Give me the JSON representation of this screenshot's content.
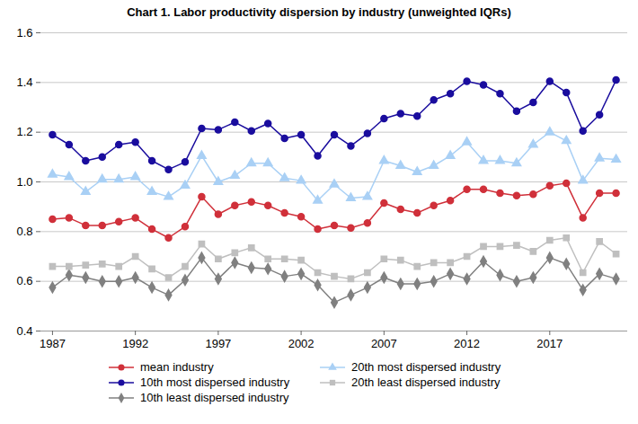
{
  "chart_data": {
    "type": "line",
    "title": "Chart 1. Labor productivity dispersion by industry (unweighted IQRs)",
    "x": [
      1987,
      1988,
      1989,
      1990,
      1991,
      1992,
      1993,
      1994,
      1995,
      1996,
      1997,
      1998,
      1999,
      2000,
      2001,
      2002,
      2003,
      2004,
      2005,
      2006,
      2007,
      2008,
      2009,
      2010,
      2011,
      2012,
      2013,
      2014,
      2015,
      2016,
      2017,
      2018,
      2019,
      2020,
      2021
    ],
    "xlim": [
      1986.3,
      2021.7
    ],
    "xticks": [
      1987,
      1992,
      1997,
      2002,
      2007,
      2012,
      2017
    ],
    "ylim": [
      0.4,
      1.6
    ],
    "yticks": [
      0.4,
      0.6,
      0.8,
      {
        "value": 1,
        "label": "1.0"
      },
      1.2,
      1.4,
      1.6
    ],
    "grid": true,
    "legend": "bottom",
    "series": [
      {
        "name": "mean industry",
        "color": "#d0303a",
        "marker": "circle",
        "values": [
          0.85,
          0.855,
          0.825,
          0.825,
          0.84,
          0.855,
          0.81,
          0.775,
          0.82,
          0.94,
          0.87,
          0.905,
          0.92,
          0.905,
          0.875,
          0.86,
          0.81,
          0.825,
          0.815,
          0.835,
          0.915,
          0.89,
          0.875,
          0.905,
          0.925,
          0.97,
          0.97,
          0.955,
          0.945,
          0.95,
          0.985,
          0.995,
          0.855,
          0.955,
          0.955
        ]
      },
      {
        "name": "10th most dispersed industry",
        "color": "#1a0d9e",
        "marker": "circle",
        "values": [
          1.19,
          1.15,
          1.085,
          1.1,
          1.15,
          1.16,
          1.085,
          1.05,
          1.08,
          1.215,
          1.21,
          1.24,
          1.205,
          1.235,
          1.175,
          1.19,
          1.105,
          1.19,
          1.145,
          1.195,
          1.255,
          1.275,
          1.265,
          1.33,
          1.355,
          1.405,
          1.39,
          1.355,
          1.285,
          1.32,
          1.405,
          1.36,
          1.205,
          1.27,
          1.41
        ]
      },
      {
        "name": "10th least dispersed industry",
        "color": "#808080",
        "marker": "diamond",
        "values": [
          0.575,
          0.625,
          0.615,
          0.6,
          0.6,
          0.615,
          0.575,
          0.545,
          0.605,
          0.695,
          0.61,
          0.675,
          0.655,
          0.65,
          0.62,
          0.63,
          0.585,
          0.515,
          0.545,
          0.575,
          0.615,
          0.59,
          0.59,
          0.6,
          0.63,
          0.61,
          0.68,
          0.625,
          0.6,
          0.615,
          0.695,
          0.67,
          0.565,
          0.63,
          0.61
        ]
      },
      {
        "name": "20th most dispersed industry",
        "color": "#a9d0f5",
        "marker": "triangle",
        "values": [
          1.03,
          1.02,
          0.96,
          1.01,
          1.01,
          1.02,
          0.96,
          0.94,
          0.985,
          1.105,
          1.0,
          1.025,
          1.075,
          1.075,
          1.015,
          1.005,
          0.925,
          0.99,
          0.935,
          0.94,
          1.085,
          1.065,
          1.04,
          1.065,
          1.105,
          1.16,
          1.085,
          1.085,
          1.075,
          1.15,
          1.2,
          1.165,
          1.005,
          1.095,
          1.09
        ]
      },
      {
        "name": "20th least dispersed industry",
        "color": "#bfbfbf",
        "marker": "square",
        "values": [
          0.66,
          0.66,
          0.665,
          0.67,
          0.66,
          0.7,
          0.65,
          0.615,
          0.66,
          0.75,
          0.69,
          0.715,
          0.735,
          0.69,
          0.69,
          0.685,
          0.635,
          0.62,
          0.61,
          0.635,
          0.69,
          0.685,
          0.66,
          0.675,
          0.675,
          0.7,
          0.74,
          0.74,
          0.745,
          0.72,
          0.765,
          0.775,
          0.635,
          0.76,
          0.71
        ]
      }
    ]
  }
}
